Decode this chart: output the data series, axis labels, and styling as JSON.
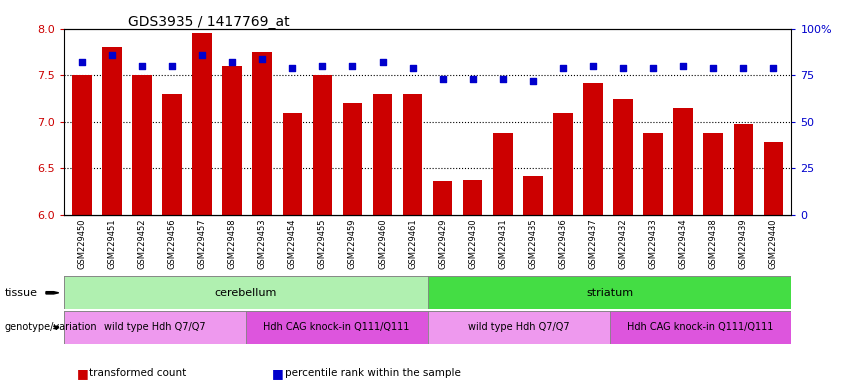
{
  "title": "GDS3935 / 1417769_at",
  "samples": [
    "GSM229450",
    "GSM229451",
    "GSM229452",
    "GSM229456",
    "GSM229457",
    "GSM229458",
    "GSM229453",
    "GSM229454",
    "GSM229455",
    "GSM229459",
    "GSM229460",
    "GSM229461",
    "GSM229429",
    "GSM229430",
    "GSM229431",
    "GSM229435",
    "GSM229436",
    "GSM229437",
    "GSM229432",
    "GSM229433",
    "GSM229434",
    "GSM229438",
    "GSM229439",
    "GSM229440"
  ],
  "bar_values": [
    7.5,
    7.8,
    7.5,
    7.3,
    7.95,
    7.6,
    7.75,
    7.1,
    7.5,
    7.2,
    7.3,
    7.3,
    6.37,
    6.38,
    6.88,
    6.42,
    7.1,
    7.42,
    7.25,
    6.88,
    7.15,
    6.88,
    6.98,
    6.78
  ],
  "percentile_values": [
    82,
    86,
    80,
    80,
    86,
    82,
    84,
    79,
    80,
    80,
    82,
    79,
    73,
    73,
    73,
    72,
    79,
    80,
    79,
    79,
    80,
    79,
    79,
    79
  ],
  "bar_color": "#cc0000",
  "dot_color": "#0000cc",
  "ylim_left": [
    6.0,
    8.0
  ],
  "ylim_right": [
    0,
    100
  ],
  "yticks_left": [
    6.0,
    6.5,
    7.0,
    7.5,
    8.0
  ],
  "yticks_right": [
    0,
    25,
    50,
    75,
    100
  ],
  "ytick_labels_right": [
    "0",
    "25",
    "50",
    "75",
    "100%"
  ],
  "grid_values": [
    6.5,
    7.0,
    7.5
  ],
  "tissue_labels": [
    {
      "label": "cerebellum",
      "start": 0,
      "end": 11,
      "color": "#b0f0b0"
    },
    {
      "label": "striatum",
      "start": 12,
      "end": 23,
      "color": "#44dd44"
    }
  ],
  "genotype_labels": [
    {
      "label": "wild type Hdh Q7/Q7",
      "start": 0,
      "end": 5,
      "color": "#ee99ee"
    },
    {
      "label": "Hdh CAG knock-in Q111/Q111",
      "start": 6,
      "end": 11,
      "color": "#dd55dd"
    },
    {
      "label": "wild type Hdh Q7/Q7",
      "start": 12,
      "end": 17,
      "color": "#ee99ee"
    },
    {
      "label": "Hdh CAG knock-in Q111/Q111",
      "start": 18,
      "end": 23,
      "color": "#dd55dd"
    }
  ],
  "legend_items": [
    {
      "label": "transformed count",
      "color": "#cc0000"
    },
    {
      "label": "percentile rank within the sample",
      "color": "#0000cc"
    }
  ],
  "tissue_row_label": "tissue",
  "genotype_row_label": "genotype/variation",
  "background_color": "#ffffff",
  "axis_label_color_left": "#cc0000",
  "axis_label_color_right": "#0000cc"
}
